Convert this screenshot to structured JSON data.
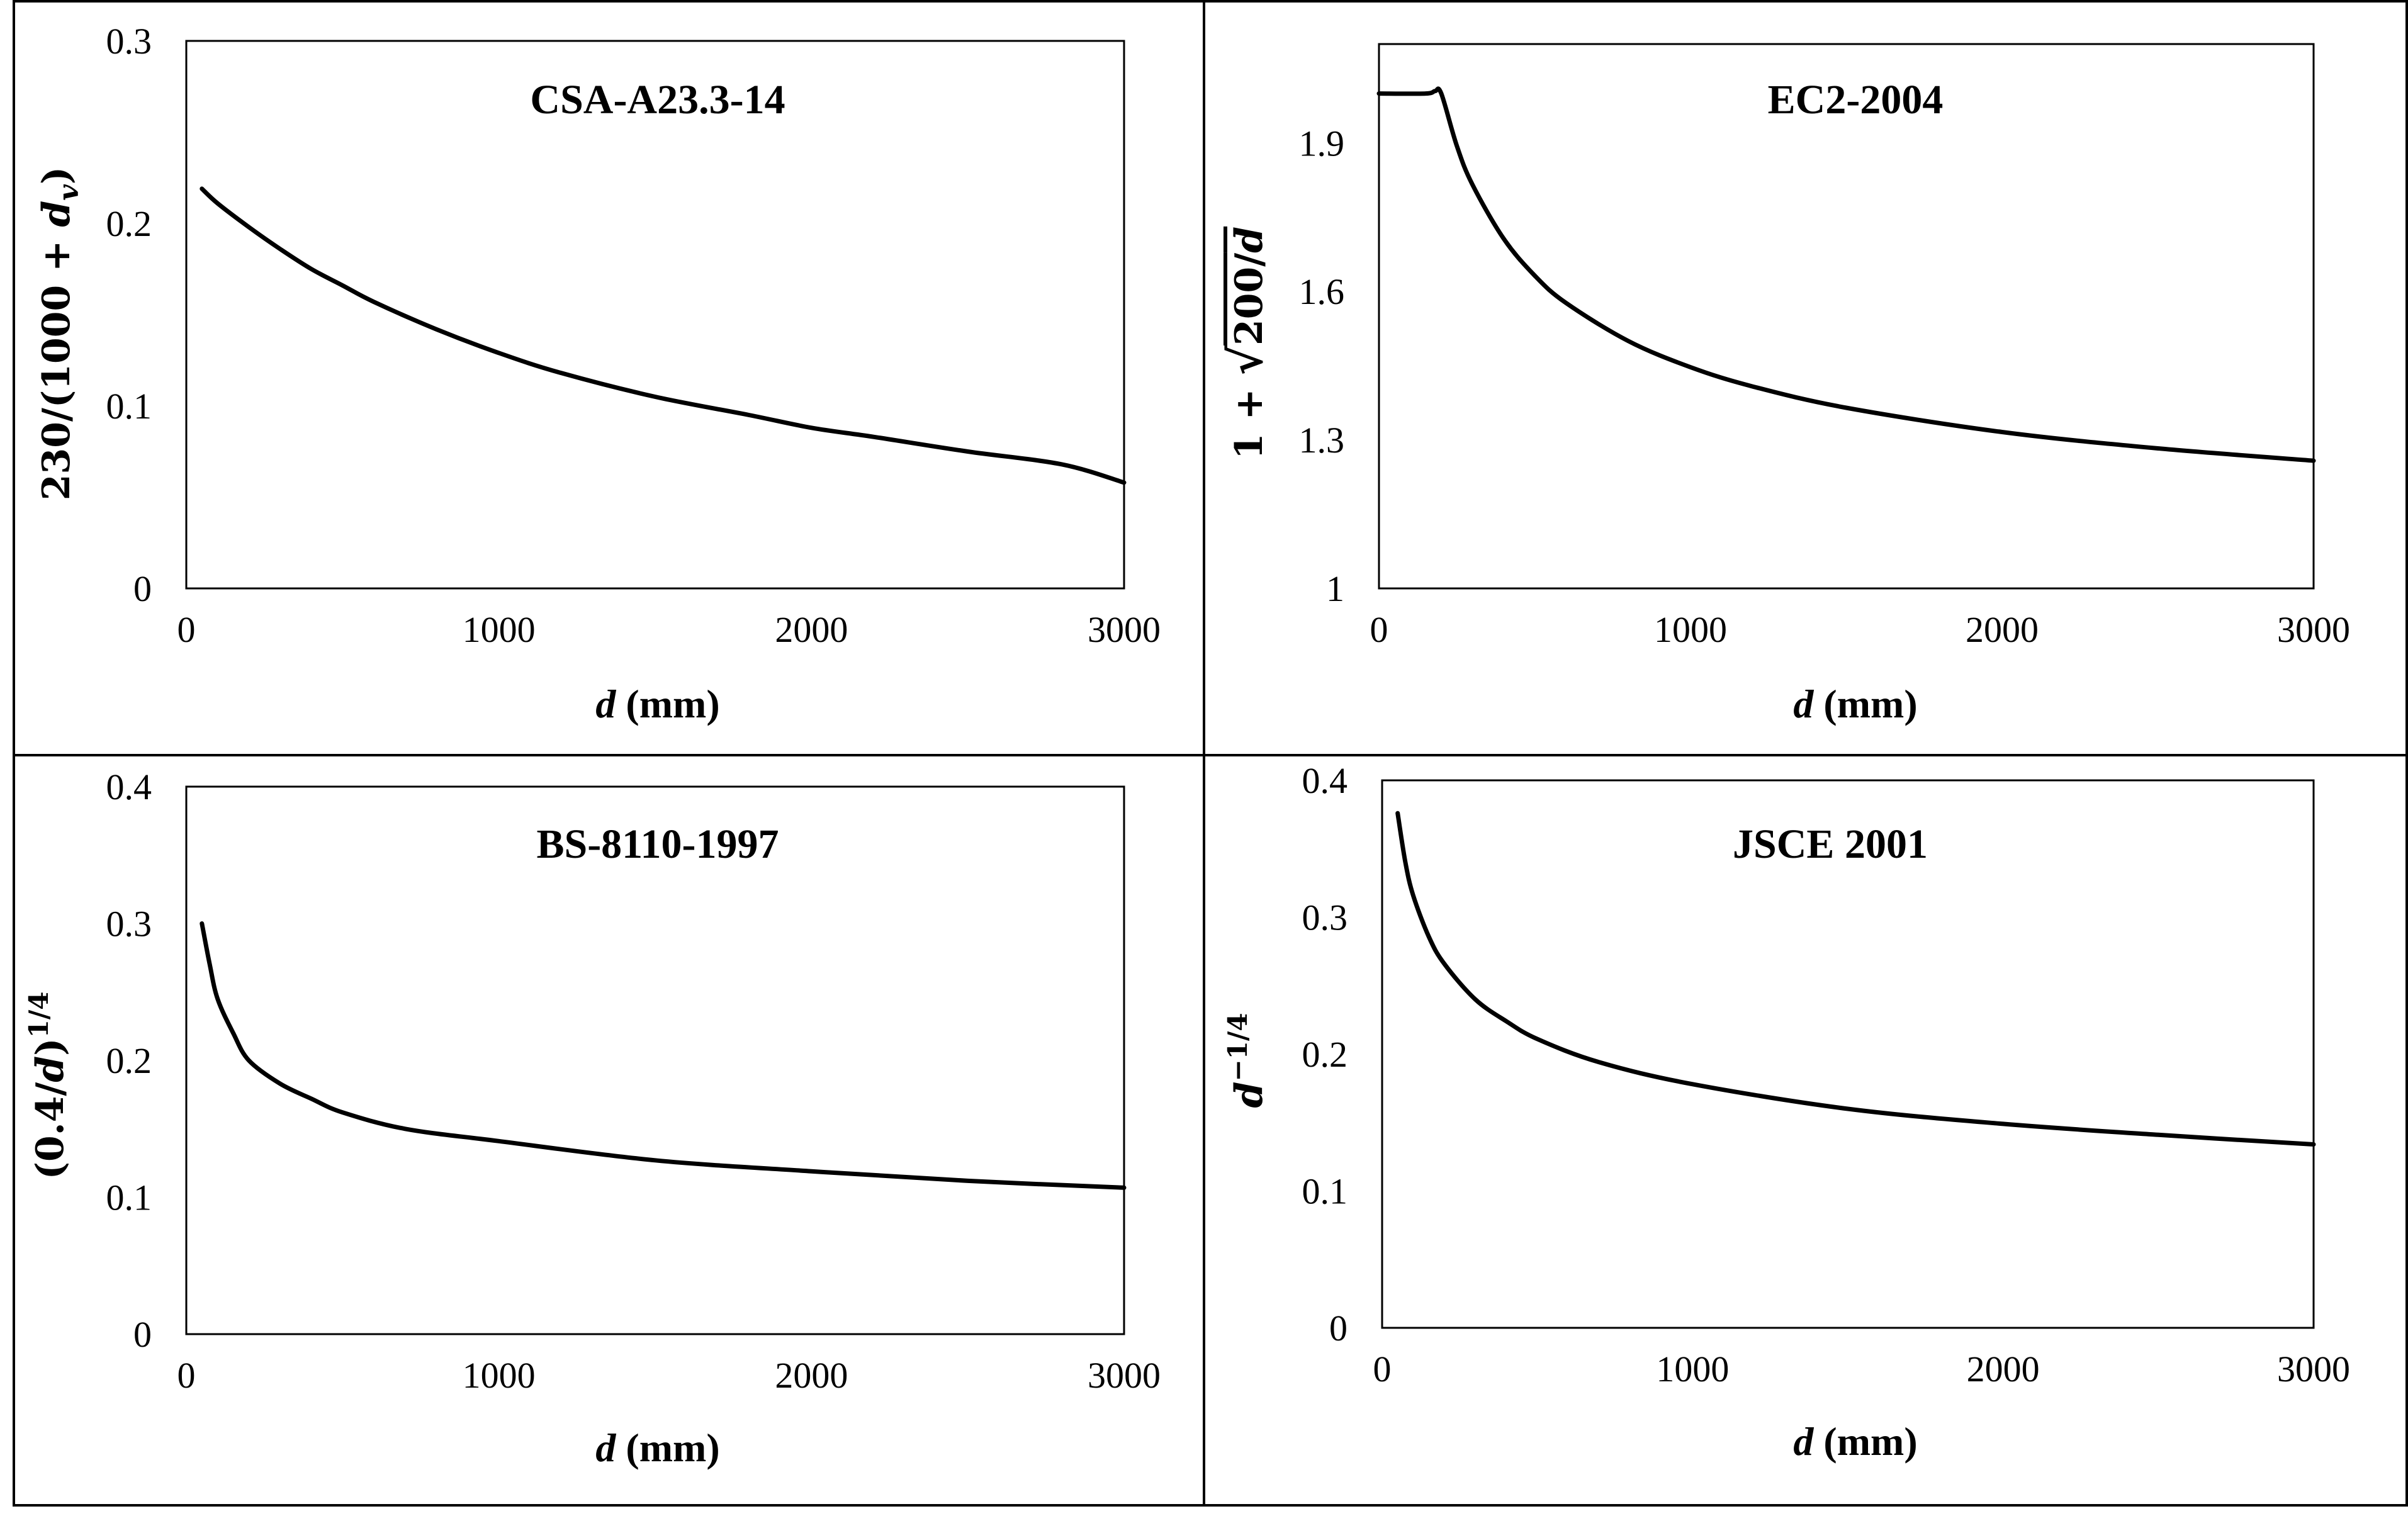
{
  "chart_data": [
    {
      "type": "line",
      "title": "CSA-A23.3-14",
      "ylabel": "230/(1000 + d_v)",
      "xlabel": "d (mm)",
      "xlim": [
        0,
        3000
      ],
      "ylim": [
        0,
        0.3
      ],
      "xticks": [
        0,
        1000,
        2000,
        3000
      ],
      "yticks": [
        0,
        0.1,
        0.2,
        0.3
      ],
      "xtick_labels": [
        "0",
        "1000",
        "2000",
        "3000"
      ],
      "ytick_labels": [
        "0",
        "0.1",
        "0.2",
        "0.3"
      ],
      "grid": false,
      "series": [
        {
          "name": "CSA-A23.3-14",
          "x": [
            50,
            100,
            200,
            300,
            400,
            500,
            600,
            800,
            1000,
            1200,
            1500,
            1800,
            2000,
            2200,
            2500,
            2800,
            3000
          ],
          "y": [
            0.219,
            0.211,
            0.198,
            0.186,
            0.175,
            0.166,
            0.157,
            0.142,
            0.129,
            0.118,
            0.105,
            0.095,
            0.088,
            0.083,
            0.075,
            0.068,
            0.058
          ]
        }
      ]
    },
    {
      "type": "line",
      "title": "EC2-2004",
      "ylabel": "1 + √(200/d)",
      "xlabel": "d (mm)",
      "xlim": [
        0,
        3000
      ],
      "ylim": [
        1,
        2.1
      ],
      "xticks": [
        0,
        1000,
        2000,
        3000
      ],
      "yticks": [
        1,
        1.3,
        1.6,
        1.9
      ],
      "xtick_labels": [
        "0",
        "1000",
        "2000",
        "3000"
      ],
      "ytick_labels": [
        "1",
        "1.3",
        "1.6",
        "1.9"
      ],
      "grid": false,
      "series": [
        {
          "name": "EC2-2004",
          "x": [
            0,
            150,
            180,
            200,
            250,
            300,
            400,
            500,
            600,
            800,
            1000,
            1200,
            1500,
            2000,
            2500,
            3000
          ],
          "y": [
            2.0,
            2.0,
            2.005,
            2.0,
            1.894,
            1.816,
            1.707,
            1.632,
            1.577,
            1.5,
            1.447,
            1.408,
            1.365,
            1.316,
            1.283,
            1.258
          ]
        }
      ]
    },
    {
      "type": "line",
      "title": "BS-8110-1997",
      "ylabel": "(0.4/d)^1/4",
      "xlabel": "d (mm)",
      "xlim": [
        0,
        3000
      ],
      "ylim": [
        0,
        0.4
      ],
      "xticks": [
        0,
        1000,
        2000,
        3000
      ],
      "yticks": [
        0,
        0.1,
        0.2,
        0.3,
        0.4
      ],
      "xtick_labels": [
        "0",
        "1000",
        "2000",
        "3000"
      ],
      "ytick_labels": [
        "0",
        "0.1",
        "0.2",
        "0.3",
        "0.4"
      ],
      "grid": false,
      "series": [
        {
          "name": "BS-8110-1997",
          "x": [
            50,
            75,
            100,
            150,
            200,
            300,
            400,
            500,
            700,
            1000,
            1500,
            2000,
            2500,
            3000
          ],
          "y": [
            0.3,
            0.27,
            0.245,
            0.22,
            0.2,
            0.183,
            0.172,
            0.162,
            0.15,
            0.141,
            0.127,
            0.119,
            0.112,
            0.107
          ]
        }
      ]
    },
    {
      "type": "line",
      "title": "JSCE 2001",
      "ylabel": "d^-1/4",
      "xlabel": "d (mm)",
      "xlim": [
        0,
        3000
      ],
      "ylim": [
        0,
        0.4
      ],
      "xticks": [
        0,
        1000,
        2000,
        3000
      ],
      "yticks": [
        0,
        0.1,
        0.2,
        0.3,
        0.4
      ],
      "xtick_labels": [
        "0",
        "1000",
        "2000",
        "3000"
      ],
      "ytick_labels": [
        "0",
        "0.1",
        "0.2",
        "0.3",
        "0.4"
      ],
      "grid": false,
      "series": [
        {
          "name": "JSCE 2001",
          "x": [
            50,
            75,
            100,
            150,
            200,
            300,
            400,
            500,
            700,
            1000,
            1500,
            2000,
            2500,
            3000
          ],
          "y": [
            0.376,
            0.34,
            0.316,
            0.286,
            0.266,
            0.24,
            0.224,
            0.211,
            0.194,
            0.178,
            0.16,
            0.149,
            0.141,
            0.134
          ]
        }
      ]
    }
  ],
  "label_parts": {
    "csa_y": {
      "main": "230/(1000 + ",
      "var": "d",
      "sub": "v",
      "tail": ")"
    },
    "ec2_y": {
      "lead": "1 + ",
      "root": "√",
      "rad": "200/",
      "var": "d"
    },
    "bs_y": {
      "lead": "(0.4/",
      "var": "d",
      "tail": ")",
      "sup": "1/4"
    },
    "jsce_y": {
      "var": "d",
      "sup": "−1/4"
    },
    "x_var": "d",
    "x_unit": " (mm)"
  }
}
